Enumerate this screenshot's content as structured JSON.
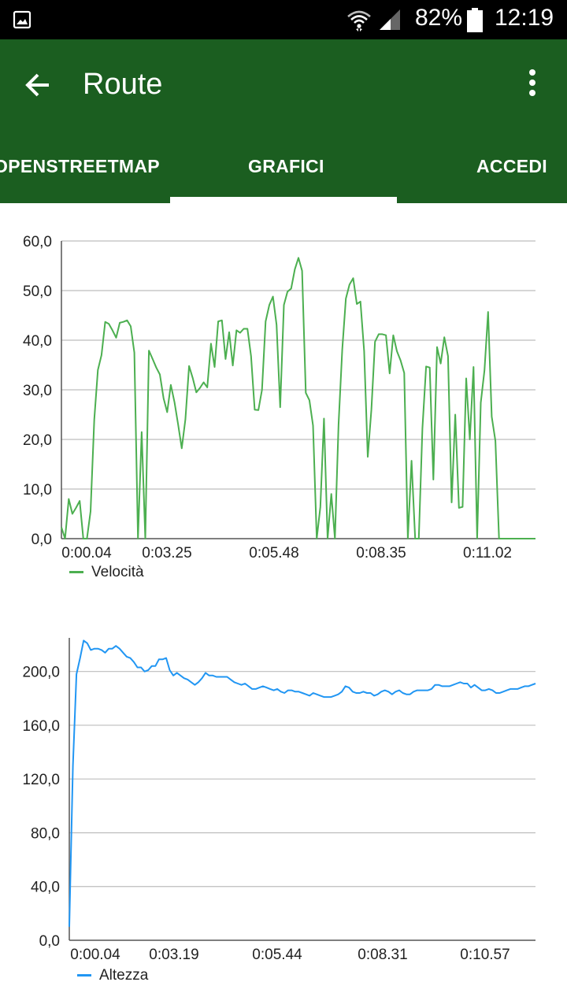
{
  "status_bar": {
    "battery": "82%",
    "time": "12:19"
  },
  "app_bar": {
    "title": "Route"
  },
  "tabs": [
    {
      "label": "OPENSTREETMAP"
    },
    {
      "label": "GRAFICI",
      "selected": true
    },
    {
      "label": "ACCEDI"
    }
  ],
  "colors": {
    "app_bar": "#1b5e20",
    "speed": "#4caf50",
    "altitude": "#2196f3"
  },
  "chart_data": [
    {
      "type": "line",
      "y_tick_labels": [
        "0,0",
        "10,0",
        "20,0",
        "30,0",
        "40,0",
        "50,0",
        "60,0"
      ],
      "ylim": [
        0,
        60
      ],
      "x_tick_labels": [
        "0:00.04",
        "0:03.25",
        "0:05.48",
        "0:08.35",
        "0:11.02"
      ],
      "grid": true,
      "legend_position": "bottom-left",
      "series": [
        {
          "name": "Velocità",
          "color": "#4caf50",
          "values": [
            2.3,
            0,
            8,
            5,
            6.2,
            7.6,
            0,
            0,
            5.5,
            24,
            34,
            37,
            43.7,
            43.3,
            42,
            40.5,
            43.5,
            43.7,
            44,
            42.8,
            37.5,
            0,
            21.5,
            0,
            37.9,
            36.2,
            34.5,
            33.1,
            28.3,
            25.5,
            31,
            27.5,
            23,
            18.2,
            24,
            34.8,
            32.4,
            29.5,
            30.4,
            31.5,
            30.5,
            39.3,
            34.6,
            43.8,
            44,
            36.2,
            41.6,
            34.9,
            42,
            41.5,
            42.3,
            42.3,
            36.8,
            26,
            25.9,
            30,
            43.8,
            47.1,
            48.8,
            43.1,
            26.5,
            47.1,
            49.8,
            50.4,
            54.3,
            56.6,
            54,
            29.4,
            27.9,
            22.8,
            0,
            6.4,
            24.2,
            0,
            9,
            0,
            23,
            38.1,
            48.4,
            51.2,
            52.5,
            47.3,
            47.8,
            37.8,
            16.5,
            26,
            39.7,
            41.2,
            41.2,
            41,
            33.3,
            41,
            37.8,
            35.9,
            33.4,
            0,
            15.7,
            0,
            0,
            22.2,
            34.7,
            34.5,
            11.9,
            38.6,
            35.3,
            40.6,
            36.8,
            7.3,
            25,
            6.2,
            6.4,
            32.3,
            20,
            34.6,
            0,
            27.4,
            33.9,
            45.7,
            24.6,
            19.7,
            0,
            0,
            0,
            0,
            0,
            0,
            0,
            0,
            0,
            0,
            0
          ]
        }
      ]
    },
    {
      "type": "line",
      "y_tick_labels": [
        "0,0",
        "40,0",
        "80,0",
        "120,0",
        "160,0",
        "200,0"
      ],
      "ylim": [
        0,
        225
      ],
      "x_tick_labels": [
        "0:00.04",
        "0:03.19",
        "0:05.44",
        "0:08.31",
        "0:10.57"
      ],
      "grid": true,
      "legend_position": "bottom-left",
      "series": [
        {
          "name": "Altezza",
          "color": "#2196f3",
          "values": [
            10,
            130,
            198,
            210,
            223,
            221,
            216,
            217,
            217,
            216,
            214,
            217,
            217,
            219,
            217,
            214,
            211,
            210,
            207,
            203,
            203,
            200,
            201,
            204,
            204,
            209,
            209,
            210,
            201,
            197,
            199,
            197,
            195,
            194,
            192,
            190,
            192,
            195,
            199,
            197,
            197,
            196,
            196,
            196,
            196,
            194,
            192,
            191,
            190,
            191,
            189,
            187,
            187,
            188,
            189,
            188,
            187,
            186,
            187,
            185,
            184,
            186,
            186,
            185,
            185,
            184,
            183,
            182,
            184,
            183,
            182,
            181,
            181,
            181,
            182,
            183,
            185,
            189,
            188,
            185,
            184,
            184,
            185,
            184,
            184,
            182,
            183,
            185,
            186,
            185,
            183,
            185,
            186,
            184,
            183,
            183,
            185,
            186,
            186,
            186,
            186,
            187,
            190,
            190,
            189,
            189,
            189,
            190,
            191,
            192,
            191,
            191,
            188,
            190,
            188,
            186,
            186,
            187,
            186,
            184,
            184,
            185,
            186,
            187,
            187,
            187,
            188,
            189,
            189,
            190,
            191
          ]
        }
      ]
    }
  ]
}
